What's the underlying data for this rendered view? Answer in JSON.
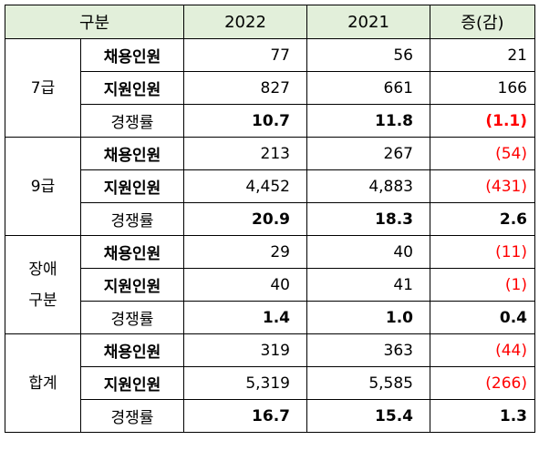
{
  "header": {
    "category": "구분",
    "y2022": "2022",
    "y2021": "2021",
    "change": "증(감)"
  },
  "groups": [
    {
      "label": "7급",
      "rows": [
        {
          "label": "채용인원",
          "v2022": "77",
          "v2021": "56",
          "change": "21"
        },
        {
          "label": "지원인원",
          "v2022": "827",
          "v2021": "661",
          "change": "166"
        },
        {
          "label": "경쟁률",
          "v2022": "10.7",
          "v2021": "11.8",
          "change": "(1.1)"
        }
      ]
    },
    {
      "label": "9급",
      "rows": [
        {
          "label": "채용인원",
          "v2022": "213",
          "v2021": "267",
          "change": "(54)"
        },
        {
          "label": "지원인원",
          "v2022": "4,452",
          "v2021": "4,883",
          "change": "(431)"
        },
        {
          "label": "경쟁률",
          "v2022": "20.9",
          "v2021": "18.3",
          "change": "2.6"
        }
      ]
    },
    {
      "label": "장애\n구분",
      "rows": [
        {
          "label": "채용인원",
          "v2022": "29",
          "v2021": "40",
          "change": "(11)"
        },
        {
          "label": "지원인원",
          "v2022": "40",
          "v2021": "41",
          "change": "(1)"
        },
        {
          "label": "경쟁률",
          "v2022": "1.4",
          "v2021": "1.0",
          "change": "0.4"
        }
      ]
    },
    {
      "label": "합계",
      "rows": [
        {
          "label": "채용인원",
          "v2022": "319",
          "v2021": "363",
          "change": "(44)"
        },
        {
          "label": "지원인원",
          "v2022": "5,319",
          "v2021": "5,585",
          "change": "(266)"
        },
        {
          "label": "경쟁률",
          "v2022": "16.7",
          "v2021": "15.4",
          "change": "1.3"
        }
      ]
    }
  ],
  "colors": {
    "header_bg": "#e2efda",
    "negative": "#ff0000"
  }
}
